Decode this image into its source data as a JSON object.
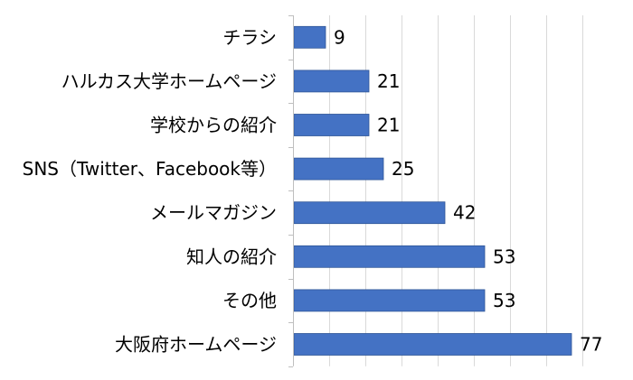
{
  "chart_data": {
    "type": "bar",
    "orientation": "horizontal",
    "categories": [
      "チラシ",
      "ハルカス大学ホームページ",
      "学校からの紹介",
      "SNS（Twitter、Facebook等）",
      "メールマガジン",
      "知人の紹介",
      "その他",
      "大阪府ホームページ"
    ],
    "values": [
      9,
      21,
      21,
      25,
      42,
      53,
      53,
      77
    ],
    "data_labels": [
      "9",
      "21",
      "21",
      "25",
      "42",
      "53",
      "53",
      "77"
    ],
    "xlim": [
      0,
      80
    ],
    "grid": "vertical",
    "legend": "none",
    "colors": {
      "bar": "#4472C4",
      "bar_edge": "#2F5597",
      "grid": "#D9D9D9",
      "axis": "#BFBFBF",
      "text": "#000000"
    }
  }
}
